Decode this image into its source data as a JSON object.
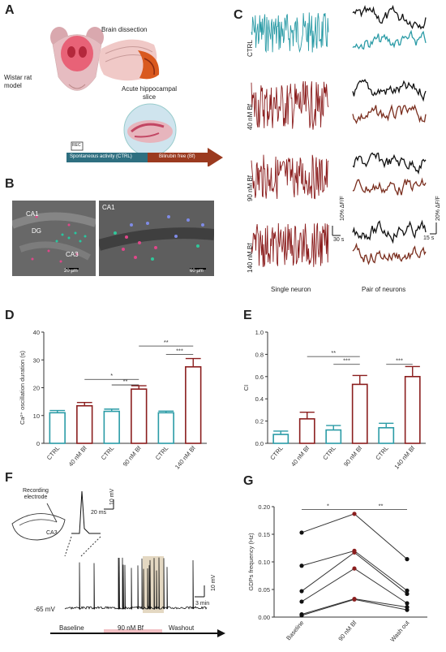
{
  "panels": {
    "A": "A",
    "B": "B",
    "C": "C",
    "D": "D",
    "E": "E",
    "F": "F",
    "G": "G"
  },
  "panel_a": {
    "rat_label": "Wistar rat\nmodel",
    "dissection_label": "Brain dissection",
    "slice_label": "Acute hippocampal\nslice",
    "rec_label": "REC",
    "bar_ctrl": "Spontaneous activity (CTRL)",
    "bar_bf": "Bilirubin free (Bf)"
  },
  "panel_b": {
    "left": {
      "ca1": "CA1",
      "dg": "DG",
      "ca3": "CA3",
      "scale": "20 µm"
    },
    "right": {
      "ca1": "CA1",
      "scale": "60 µm"
    }
  },
  "panel_c": {
    "rows": [
      "CTRL",
      "40 nM Bf",
      "90 nM Bf",
      "140 nM Bf"
    ],
    "col_single": "Single neuron",
    "col_pair": "Pair of neurons",
    "scale_single_time": "30 s",
    "scale_single_amp": "10% ΔF/F",
    "scale_pair_time": "15 s",
    "scale_pair_amp": "20% ΔF/F",
    "colors": {
      "ctrl": "#2a9ba6",
      "bf": "#8b1e1e",
      "pair_top": "#111111",
      "pair_bf": "#7a2e1e"
    }
  },
  "chart_data": [
    {
      "panel": "D",
      "type": "bar",
      "ylabel": "Ca²⁺ oscillation duration (s)",
      "ylim": [
        0,
        40
      ],
      "yticks": [
        "0",
        "10",
        "20",
        "30",
        "40"
      ],
      "categories": [
        "CTRL",
        "40 nM Bf",
        "CTRL",
        "90 nM Bf",
        "CTRL",
        "140 nM Bf"
      ],
      "values": [
        11,
        13.5,
        11.5,
        19.5,
        11,
        27.5
      ],
      "errors": [
        0.8,
        1.2,
        0.8,
        1.2,
        0.6,
        3.0
      ],
      "colors": [
        "#2a9ba6",
        "#8b1e1e",
        "#2a9ba6",
        "#8b1e1e",
        "#2a9ba6",
        "#8b1e1e"
      ],
      "significance": [
        {
          "from": 1,
          "to": 3,
          "label": "*",
          "y": 23
        },
        {
          "from": 2,
          "to": 3,
          "label": "**",
          "y": 21
        },
        {
          "from": 3,
          "to": 5,
          "label": "**",
          "y": 35
        },
        {
          "from": 4,
          "to": 5,
          "label": "***",
          "y": 32
        }
      ]
    },
    {
      "panel": "E",
      "type": "bar",
      "ylabel": "CI",
      "ylim": [
        0,
        1
      ],
      "yticks": [
        "0.0",
        "0.2",
        "0.4",
        "0.6",
        "0.8",
        "1.0"
      ],
      "categories": [
        "CTRL",
        "40 nM Bf",
        "CTRL",
        "90 nM Bf",
        "CTRL",
        "140 nM Bf"
      ],
      "values": [
        0.08,
        0.22,
        0.12,
        0.53,
        0.14,
        0.6
      ],
      "errors": [
        0.03,
        0.06,
        0.04,
        0.08,
        0.04,
        0.09
      ],
      "colors": [
        "#2a9ba6",
        "#8b1e1e",
        "#2a9ba6",
        "#8b1e1e",
        "#2a9ba6",
        "#8b1e1e"
      ],
      "significance": [
        {
          "from": 1,
          "to": 3,
          "label": "**",
          "y": 0.78
        },
        {
          "from": 2,
          "to": 3,
          "label": "***",
          "y": 0.71
        },
        {
          "from": 4,
          "to": 5,
          "label": "***",
          "y": 0.71
        }
      ]
    },
    {
      "panel": "G",
      "type": "line",
      "ylabel": "GDPs frequency (Hz)",
      "ylim": [
        0,
        0.2
      ],
      "yticks": [
        "0.00",
        "0.05",
        "0.10",
        "0.15",
        "0.20"
      ],
      "categories": [
        "Baseline",
        "90 nM Bf",
        "Wash out"
      ],
      "series": [
        {
          "values": [
            0.153,
            0.187,
            0.105
          ]
        },
        {
          "values": [
            0.093,
            0.12,
            0.048
          ]
        },
        {
          "values": [
            0.047,
            0.117,
            0.042
          ]
        },
        {
          "values": [
            0.028,
            0.088,
            0.025
          ]
        },
        {
          "values": [
            0.005,
            0.033,
            0.018
          ]
        },
        {
          "values": [
            0.003,
            0.032,
            0.013
          ]
        }
      ],
      "marker_colors": [
        "#111111",
        "#8b1e1e",
        "#111111"
      ],
      "significance": [
        {
          "from": 0,
          "to": 1,
          "label": "*",
          "y": 0.195
        },
        {
          "from": 1,
          "to": 2,
          "label": "**",
          "y": 0.195
        }
      ]
    }
  ],
  "panel_f": {
    "recording_label": "Recording\nelectrode",
    "ca3_label": "CA3",
    "inset_time": "20 ms",
    "inset_amp": "10 mV",
    "trace_amp": "10 mV",
    "trace_time": "3 min",
    "baseline_mv": "-65 mV",
    "phases": [
      "Baseline",
      "90 nM Bf",
      "Washout"
    ]
  }
}
